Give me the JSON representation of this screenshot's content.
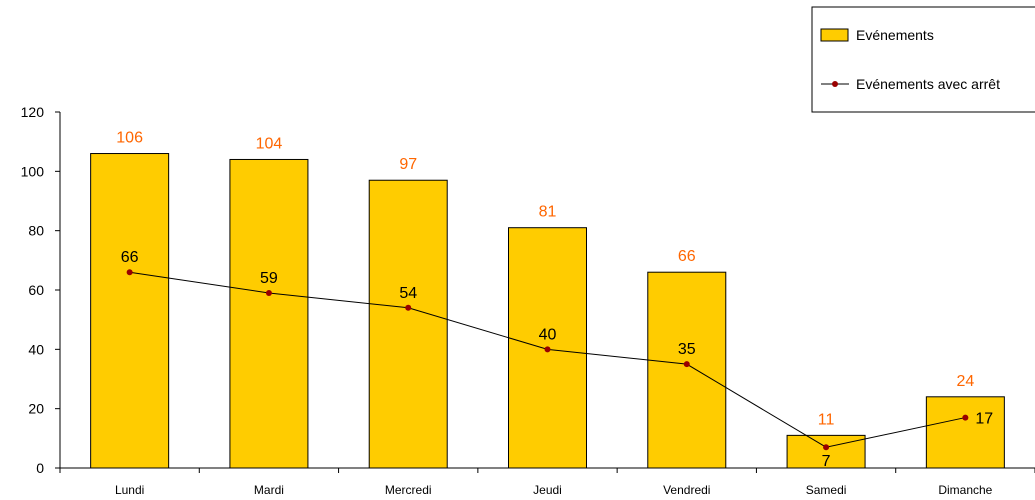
{
  "chart_data": {
    "type": "bar",
    "categories": [
      "Lundi",
      "Mardi",
      "Mercredi",
      "Jeudi",
      "Vendredi",
      "Samedi",
      "Dimanche"
    ],
    "series": [
      {
        "name": "Evénements",
        "kind": "bar",
        "values": [
          106,
          104,
          97,
          81,
          66,
          11,
          24
        ]
      },
      {
        "name": "Evénements avec arrêt",
        "kind": "line",
        "values": [
          66,
          59,
          54,
          40,
          35,
          7,
          17
        ]
      }
    ],
    "yticks": [
      "0",
      "20",
      "40",
      "60",
      "80",
      "100",
      "120"
    ],
    "ylim": [
      0,
      120
    ],
    "grid": false,
    "legend": "top-right",
    "colors": {
      "bar_fill": "#FFCC00",
      "bar_stroke": "#000000",
      "bar_label": "#FF6600",
      "line": "#000000",
      "marker": "#990000"
    }
  }
}
